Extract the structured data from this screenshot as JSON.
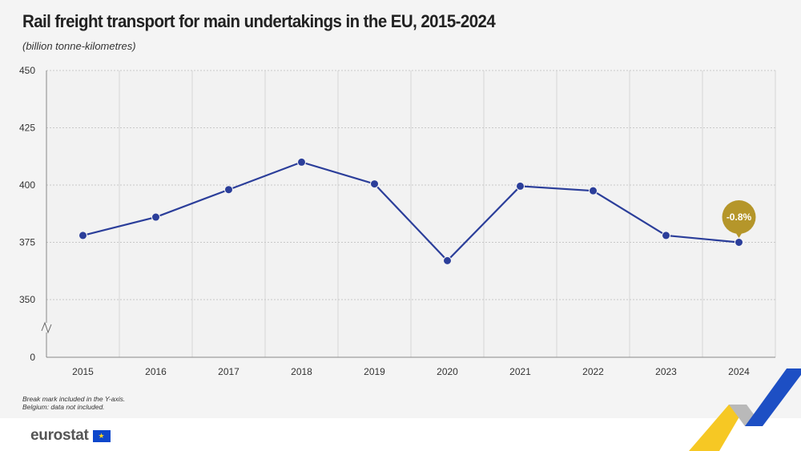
{
  "header": {
    "title": "Rail freight transport for main undertakings in the EU, 2015-2024",
    "subtitle": "(billion tonne-kilometres)"
  },
  "footnotes": [
    "Break mark included in the Y-axis.",
    "Belgium: data not included."
  ],
  "brand": {
    "name": "eurostat",
    "flag_icon": "eu-flag-icon"
  },
  "colors": {
    "line": "#2b3e9a",
    "badge": "#b5962a",
    "grid": "#c8c8c8",
    "background": "#f4f4f4"
  },
  "chart_data": {
    "type": "line",
    "title": "Rail freight transport for main undertakings in the EU, 2015-2024",
    "subtitle": "(billion tonne-kilometres)",
    "categories": [
      "2015",
      "2016",
      "2017",
      "2018",
      "2019",
      "2020",
      "2021",
      "2022",
      "2023",
      "2024"
    ],
    "series": [
      {
        "values": [
          378,
          386,
          398,
          410,
          400.5,
          367,
          399.5,
          397.5,
          378,
          375
        ]
      }
    ],
    "y_ticks": [
      "0",
      "350",
      "375",
      "400",
      "425",
      "450"
    ],
    "ylim": [
      340,
      450
    ],
    "y_axis_break": true,
    "grid": true,
    "annotation": {
      "category": "2024",
      "label": "-0.8%"
    }
  }
}
